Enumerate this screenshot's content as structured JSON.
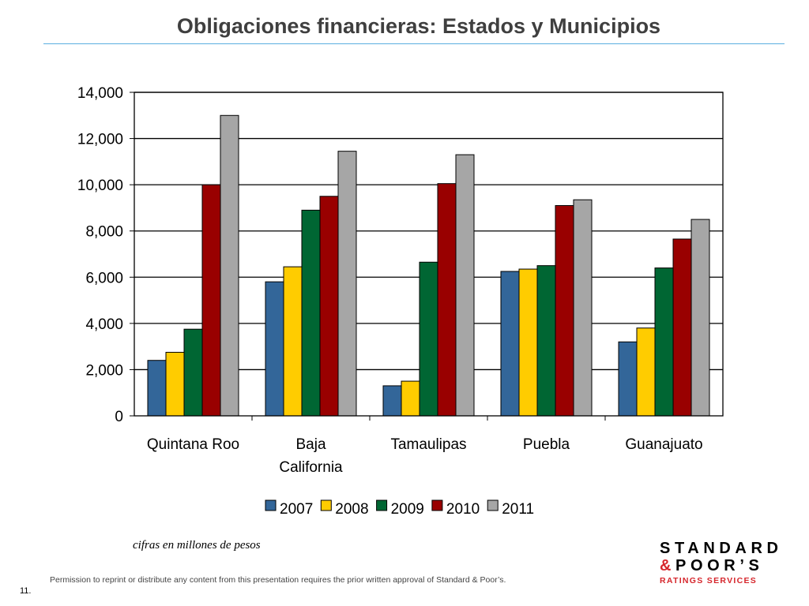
{
  "page": {
    "title": "Obligaciones financieras: Estados y Municipios",
    "caption": "cifras en millones de pesos",
    "permission": "Permission to reprint or distribute any content from this presentation requires the prior written approval of Standard & Poor’s.",
    "page_number": "11.",
    "logo": {
      "line1": "STANDARD",
      "line2_amp": "&",
      "line2_text": "POOR’S",
      "line3": "RATINGS SERVICES"
    }
  },
  "colors": {
    "title_rule": "#5aaee0",
    "logo_red": "#d6262c"
  },
  "chart_data": {
    "type": "bar",
    "categories": [
      [
        "Quintana Roo"
      ],
      [
        "Baja",
        "California"
      ],
      [
        "Tamaulipas"
      ],
      [
        "Puebla"
      ],
      [
        "Guanajuato"
      ]
    ],
    "series": [
      {
        "name": "2007",
        "color": "#336699",
        "values": [
          2400,
          5800,
          1300,
          6250,
          3200
        ]
      },
      {
        "name": "2008",
        "color": "#ffcc00",
        "values": [
          2750,
          6450,
          1500,
          6350,
          3800
        ]
      },
      {
        "name": "2009",
        "color": "#006633",
        "values": [
          3750,
          8900,
          6650,
          6500,
          6400
        ]
      },
      {
        "name": "2010",
        "color": "#990000",
        "values": [
          10000,
          9500,
          10050,
          9100,
          7650
        ]
      },
      {
        "name": "2011",
        "color": "#a6a6a6",
        "values": [
          13000,
          11450,
          11300,
          9350,
          8500
        ]
      }
    ],
    "yticks": [
      "0",
      "2,000",
      "4,000",
      "6,000",
      "8,000",
      "10,000",
      "12,000",
      "14,000"
    ],
    "ylim": [
      0,
      14000
    ],
    "ystep": 2000,
    "grid": true,
    "legend": "bottom",
    "title": "",
    "xlabel": "",
    "ylabel": ""
  }
}
